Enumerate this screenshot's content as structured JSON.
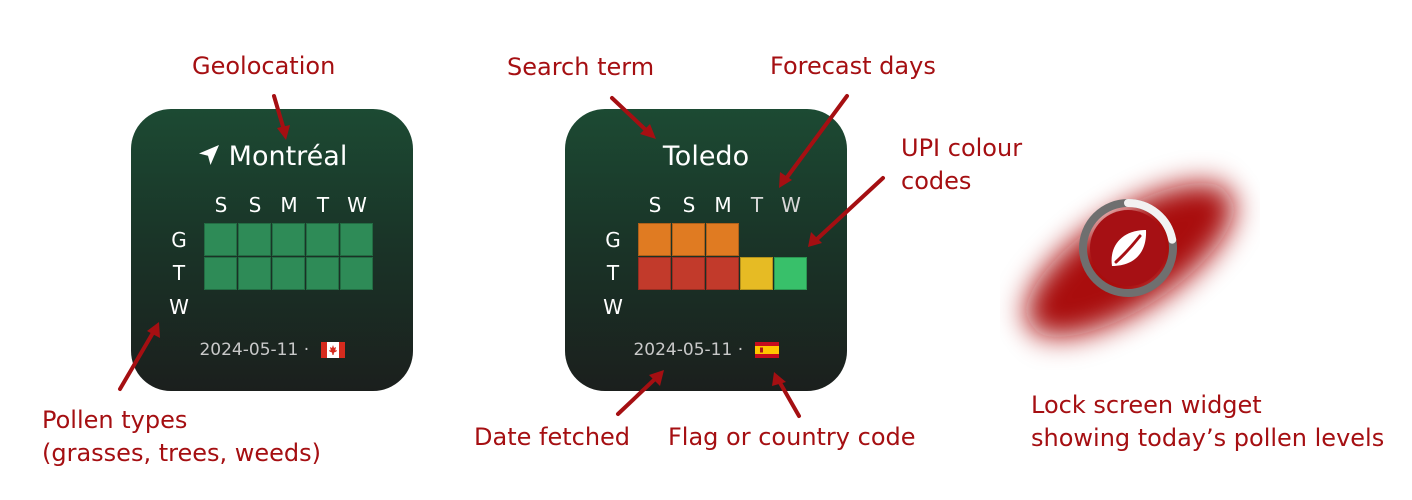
{
  "widget_montreal": {
    "city": "Montréal",
    "days": [
      "S",
      "S",
      "M",
      "T",
      "W"
    ],
    "pollen_types": [
      "G",
      "T",
      "W"
    ],
    "grid": [
      [
        "green",
        "green",
        "green",
        "green",
        "green"
      ],
      [
        "green",
        "green",
        "green",
        "green",
        "green"
      ],
      [
        null,
        null,
        null,
        null,
        null
      ]
    ],
    "date": "2024-05-11",
    "separator": "·",
    "country": "Canada"
  },
  "widget_toledo": {
    "city": "Toledo",
    "days": [
      "S",
      "S",
      "M",
      "T",
      "W"
    ],
    "pollen_types": [
      "G",
      "T",
      "W"
    ],
    "grid": [
      [
        "orange",
        "orange",
        "orange",
        null,
        null
      ],
      [
        "red",
        "red",
        "red",
        "yellow",
        "light-green"
      ],
      [
        null,
        null,
        null,
        null,
        null
      ]
    ],
    "date": "2024-05-11",
    "separator": "·",
    "country": "Spain"
  },
  "lock_widget": {
    "level_fraction": 0.22
  },
  "colors": {
    "annotation": "#a50f12",
    "green": "#2e8b57",
    "orange": "#e07b22",
    "red": "#c23a2b",
    "yellow": "#e6bb24",
    "light-green": "#38c06a"
  },
  "labels": {
    "geolocation": "Geolocation",
    "search_term": "Search term",
    "forecast_days": "Forecast days",
    "upi_line1": "UPI colour",
    "upi_line2": "codes",
    "pollen_line1": "Pollen types",
    "pollen_line2": "(grasses, trees, weeds)",
    "date_fetched": "Date fetched",
    "flag_code": "Flag or country code",
    "lock_line1": "Lock screen widget",
    "lock_line2": "showing today’s pollen levels"
  }
}
